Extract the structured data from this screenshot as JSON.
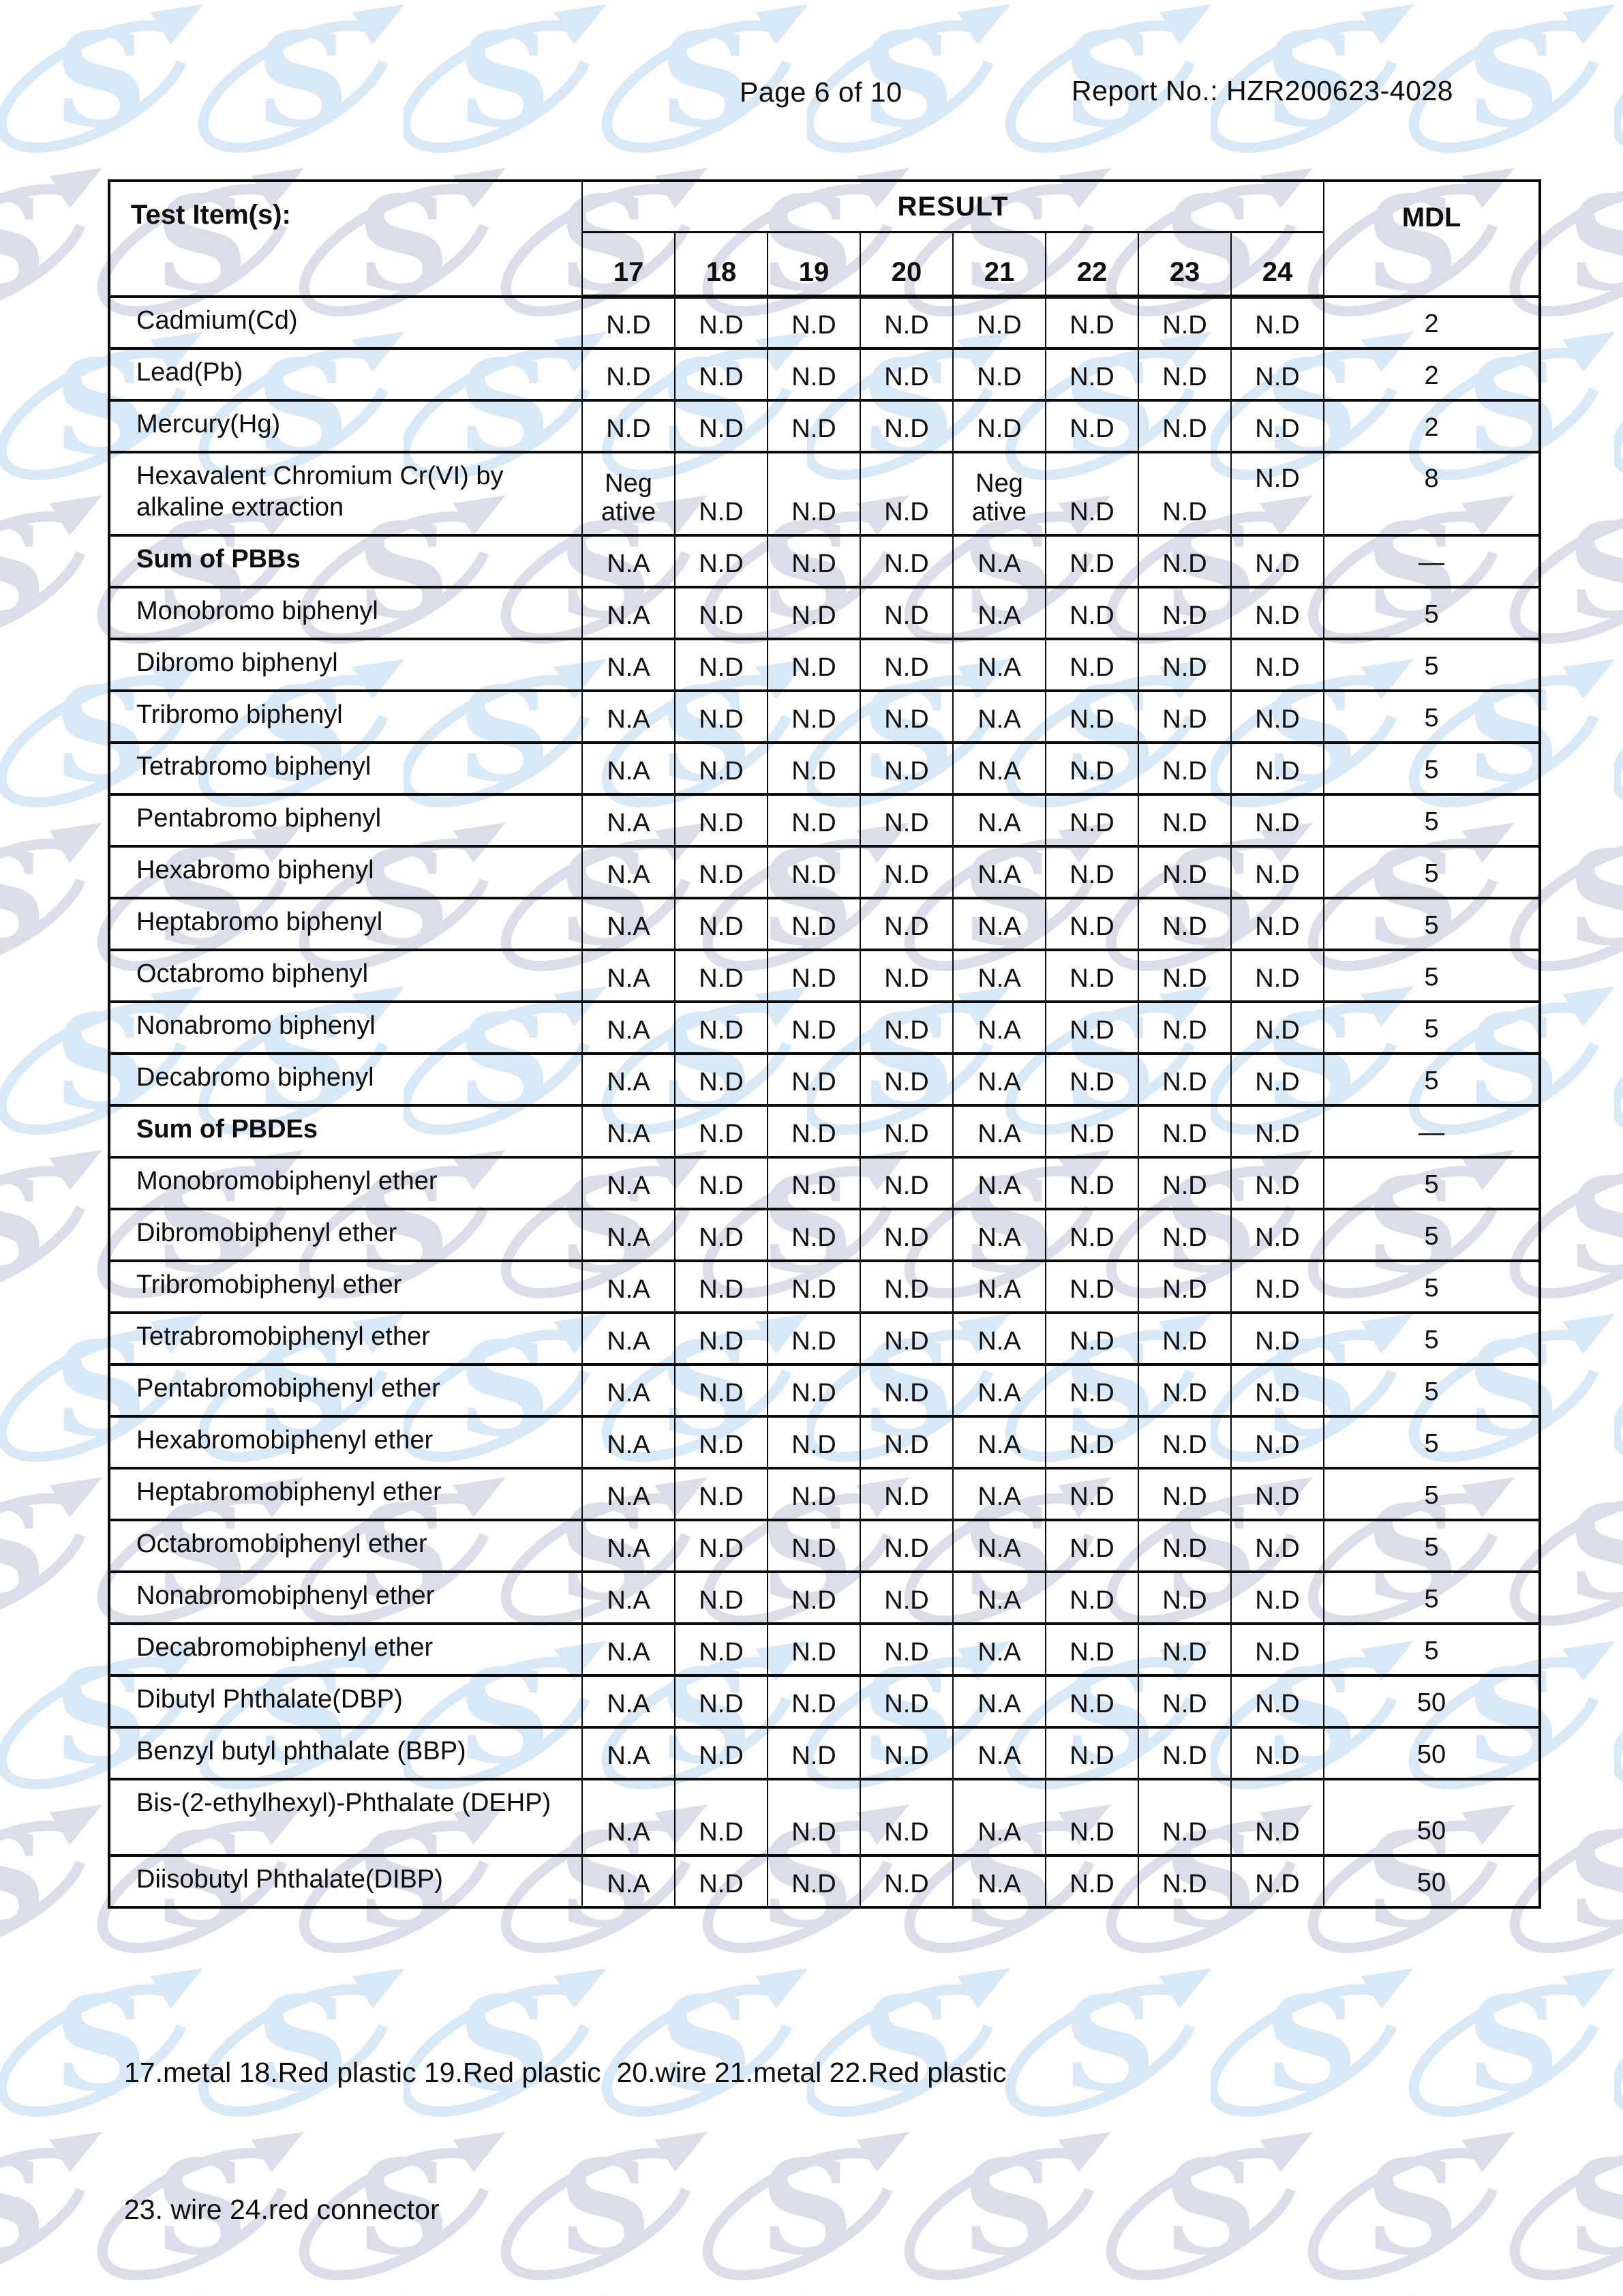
{
  "header": {
    "page_label": "Page 6 of 10",
    "report_label": "Report No.: HZR200623-4028"
  },
  "table": {
    "item_header": "Test Item(s):",
    "result_header": "RESULT",
    "mdl_header": "MDL",
    "sample_ids": [
      "17",
      "18",
      "19",
      "20",
      "21",
      "22",
      "23",
      "24"
    ],
    "rows": [
      {
        "label": "Cadmium(Cd)",
        "bold": false,
        "values": [
          "N.D",
          "N.D",
          "N.D",
          "N.D",
          "N.D",
          "N.D",
          "N.D",
          "N.D"
        ],
        "mdl": "2"
      },
      {
        "label": "Lead(Pb)",
        "bold": false,
        "values": [
          "N.D",
          "N.D",
          "N.D",
          "N.D",
          "N.D",
          "N.D",
          "N.D",
          "N.D"
        ],
        "mdl": "2"
      },
      {
        "label": "Mercury(Hg)",
        "bold": false,
        "values": [
          "N.D",
          "N.D",
          "N.D",
          "N.D",
          "N.D",
          "N.D",
          "N.D",
          "N.D"
        ],
        "mdl": "2"
      },
      {
        "label": "Hexavalent Chromium Cr(VI) by alkaline extraction",
        "bold": false,
        "special": "hex",
        "values": [
          "Neg\native",
          "N.D",
          "N.D",
          "N.D",
          "Neg\native",
          "N.D",
          "N.D",
          "N.D"
        ],
        "mdl": "8"
      },
      {
        "label": "Sum of PBBs",
        "bold": true,
        "values": [
          "N.A",
          "N.D",
          "N.D",
          "N.D",
          "N.A",
          "N.D",
          "N.D",
          "N.D"
        ],
        "mdl": "—"
      },
      {
        "label": "Monobromo biphenyl",
        "bold": false,
        "values": [
          "N.A",
          "N.D",
          "N.D",
          "N.D",
          "N.A",
          "N.D",
          "N.D",
          "N.D"
        ],
        "mdl": "5"
      },
      {
        "label": "Dibromo biphenyl",
        "bold": false,
        "values": [
          "N.A",
          "N.D",
          "N.D",
          "N.D",
          "N.A",
          "N.D",
          "N.D",
          "N.D"
        ],
        "mdl": "5"
      },
      {
        "label": "Tribromo biphenyl",
        "bold": false,
        "values": [
          "N.A",
          "N.D",
          "N.D",
          "N.D",
          "N.A",
          "N.D",
          "N.D",
          "N.D"
        ],
        "mdl": "5"
      },
      {
        "label": "Tetrabromo biphenyl",
        "bold": false,
        "values": [
          "N.A",
          "N.D",
          "N.D",
          "N.D",
          "N.A",
          "N.D",
          "N.D",
          "N.D"
        ],
        "mdl": "5"
      },
      {
        "label": "Pentabromo biphenyl",
        "bold": false,
        "values": [
          "N.A",
          "N.D",
          "N.D",
          "N.D",
          "N.A",
          "N.D",
          "N.D",
          "N.D"
        ],
        "mdl": "5"
      },
      {
        "label": "Hexabromo biphenyl",
        "bold": false,
        "values": [
          "N.A",
          "N.D",
          "N.D",
          "N.D",
          "N.A",
          "N.D",
          "N.D",
          "N.D"
        ],
        "mdl": "5"
      },
      {
        "label": "Heptabromo biphenyl",
        "bold": false,
        "values": [
          "N.A",
          "N.D",
          "N.D",
          "N.D",
          "N.A",
          "N.D",
          "N.D",
          "N.D"
        ],
        "mdl": "5"
      },
      {
        "label": "Octabromo biphenyl",
        "bold": false,
        "values": [
          "N.A",
          "N.D",
          "N.D",
          "N.D",
          "N.A",
          "N.D",
          "N.D",
          "N.D"
        ],
        "mdl": "5"
      },
      {
        "label": "Nonabromo biphenyl",
        "bold": false,
        "values": [
          "N.A",
          "N.D",
          "N.D",
          "N.D",
          "N.A",
          "N.D",
          "N.D",
          "N.D"
        ],
        "mdl": "5"
      },
      {
        "label": "Decabromo biphenyl",
        "bold": false,
        "values": [
          "N.A",
          "N.D",
          "N.D",
          "N.D",
          "N.A",
          "N.D",
          "N.D",
          "N.D"
        ],
        "mdl": "5"
      },
      {
        "label": "Sum of PBDEs",
        "bold": true,
        "values": [
          "N.A",
          "N.D",
          "N.D",
          "N.D",
          "N.A",
          "N.D",
          "N.D",
          "N.D"
        ],
        "mdl": "—"
      },
      {
        "label": "Monobromobiphenyl ether",
        "bold": false,
        "values": [
          "N.A",
          "N.D",
          "N.D",
          "N.D",
          "N.A",
          "N.D",
          "N.D",
          "N.D"
        ],
        "mdl": "5"
      },
      {
        "label": "Dibromobiphenyl ether",
        "bold": false,
        "values": [
          "N.A",
          "N.D",
          "N.D",
          "N.D",
          "N.A",
          "N.D",
          "N.D",
          "N.D"
        ],
        "mdl": "5"
      },
      {
        "label": "Tribromobiphenyl ether",
        "bold": false,
        "values": [
          "N.A",
          "N.D",
          "N.D",
          "N.D",
          "N.A",
          "N.D",
          "N.D",
          "N.D"
        ],
        "mdl": "5"
      },
      {
        "label": "Tetrabromobiphenyl ether",
        "bold": false,
        "values": [
          "N.A",
          "N.D",
          "N.D",
          "N.D",
          "N.A",
          "N.D",
          "N.D",
          "N.D"
        ],
        "mdl": "5"
      },
      {
        "label": "Pentabromobiphenyl ether",
        "bold": false,
        "values": [
          "N.A",
          "N.D",
          "N.D",
          "N.D",
          "N.A",
          "N.D",
          "N.D",
          "N.D"
        ],
        "mdl": "5"
      },
      {
        "label": "Hexabromobiphenyl ether",
        "bold": false,
        "values": [
          "N.A",
          "N.D",
          "N.D",
          "N.D",
          "N.A",
          "N.D",
          "N.D",
          "N.D"
        ],
        "mdl": "5"
      },
      {
        "label": "Heptabromobiphenyl ether",
        "bold": false,
        "values": [
          "N.A",
          "N.D",
          "N.D",
          "N.D",
          "N.A",
          "N.D",
          "N.D",
          "N.D"
        ],
        "mdl": "5"
      },
      {
        "label": "Octabromobiphenyl ether",
        "bold": false,
        "values": [
          "N.A",
          "N.D",
          "N.D",
          "N.D",
          "N.A",
          "N.D",
          "N.D",
          "N.D"
        ],
        "mdl": "5"
      },
      {
        "label": "Nonabromobiphenyl ether",
        "bold": false,
        "values": [
          "N.A",
          "N.D",
          "N.D",
          "N.D",
          "N.A",
          "N.D",
          "N.D",
          "N.D"
        ],
        "mdl": "5"
      },
      {
        "label": "Decabromobiphenyl ether",
        "bold": false,
        "values": [
          "N.A",
          "N.D",
          "N.D",
          "N.D",
          "N.A",
          "N.D",
          "N.D",
          "N.D"
        ],
        "mdl": "5"
      },
      {
        "label": "Dibutyl Phthalate(DBP)",
        "bold": false,
        "values": [
          "N.A",
          "N.D",
          "N.D",
          "N.D",
          "N.A",
          "N.D",
          "N.D",
          "N.D"
        ],
        "mdl": "50"
      },
      {
        "label": "Benzyl butyl phthalate (BBP)",
        "bold": false,
        "values": [
          "N.A",
          "N.D",
          "N.D",
          "N.D",
          "N.A",
          "N.D",
          "N.D",
          "N.D"
        ],
        "mdl": "50"
      },
      {
        "label": "Bis-(2-ethylhexyl)-Phthalate (DEHP)",
        "bold": false,
        "special": "tall",
        "values": [
          "N.A",
          "N.D",
          "N.D",
          "N.D",
          "N.A",
          "N.D",
          "N.D",
          "N.D"
        ],
        "mdl": "50"
      },
      {
        "label": "Diisobutyl Phthalate(DIBP)",
        "bold": false,
        "values": [
          "N.A",
          "N.D",
          "N.D",
          "N.D",
          "N.A",
          "N.D",
          "N.D",
          "N.D"
        ],
        "mdl": "50"
      }
    ]
  },
  "footer": {
    "line1": "17.metal 18.Red plastic 19.Red plastic  20.wire 21.metal 22.Red plastic",
    "line2": "23. wire 24.red connector"
  },
  "watermark": {
    "blue": "#d7e8f7",
    "gray": "#dbdeea"
  }
}
